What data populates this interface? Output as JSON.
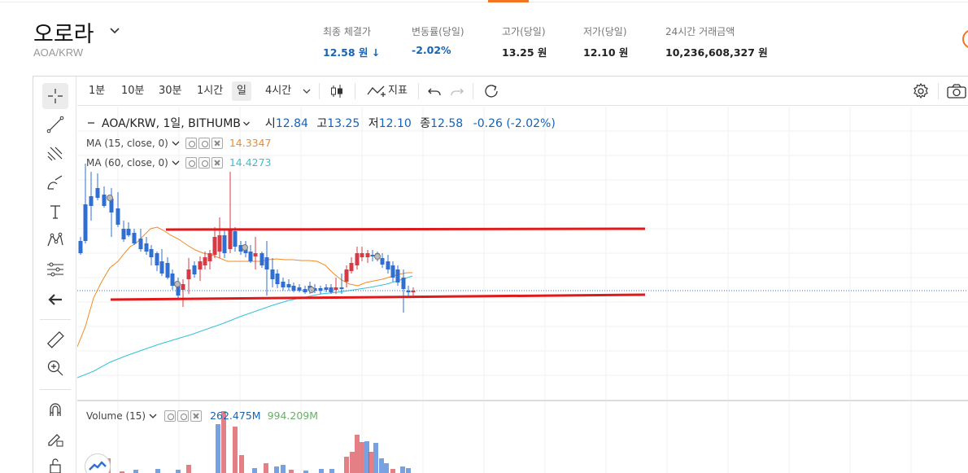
{
  "header": {
    "coin_name": "오로라",
    "pair": "AOA/KRW",
    "stats": [
      {
        "label": "최종 체결가",
        "value": "12.58 원 ↓",
        "color": "blue"
      },
      {
        "label": "변동률(당일)",
        "value": "-2.02%",
        "color": "blue"
      },
      {
        "label": "고가(당일)",
        "value": "13.25 원",
        "color": "normal"
      },
      {
        "label": "저가(당일)",
        "value": "12.10 원",
        "color": "normal"
      },
      {
        "label": "24시간 거래금액",
        "value": "10,236,608,327 원",
        "color": "normal"
      }
    ]
  },
  "toolbar": {
    "timeframes": [
      "1분",
      "10분",
      "30분",
      "1시간",
      "일",
      "4시간"
    ],
    "active_timeframe": "일",
    "indicator_label": "지표"
  },
  "left_tools": [
    "crosshair-icon",
    "trend-line-icon",
    "fib-icon",
    "brush-icon",
    "text-icon",
    "pattern-icon",
    "forecast-icon",
    "back-arrow-icon",
    "ruler-icon",
    "zoom-in-icon",
    "magnet-icon",
    "lock-draw-icon",
    "lock-icon"
  ],
  "legend": {
    "symbol": "AOA/KRW, 1일, BITHUMB",
    "open_label": "시",
    "open": "12.84",
    "high_label": "고",
    "high": "13.25",
    "low_label": "저",
    "low": "12.10",
    "close_label": "종",
    "close": "12.58",
    "change": "-0.26 (-2.02%)"
  },
  "indicators": [
    {
      "name": "MA (15, close, 0)",
      "value": "14.3347",
      "color": "#f28b24"
    },
    {
      "name": "MA (60, close, 0)",
      "value": "14.4273",
      "color": "#33c2d6"
    }
  ],
  "volume": {
    "name": "Volume (15)",
    "value1": "262.475M",
    "value2": "994.209M",
    "value1_color": "#1763b6",
    "value2_color": "#6cae6c"
  },
  "colors": {
    "accent": "#f37321",
    "up": "#d63b45",
    "down": "#2e6fd1",
    "resistance_line": "#e01a1a"
  }
}
